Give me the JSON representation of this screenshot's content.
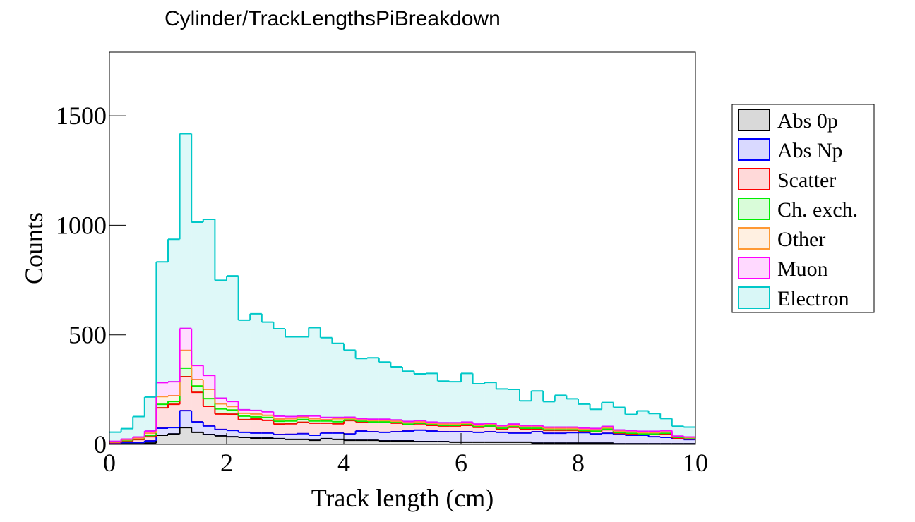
{
  "chart_data": {
    "type": "stacked-histogram",
    "title": "Cylinder/TrackLengthsPiBreakdown",
    "x_label": "Track length (cm)",
    "y_label": "Counts",
    "bins": [
      0,
      0.2,
      0.4,
      0.6,
      0.8,
      1,
      1.2,
      1.4,
      1.6,
      1.8,
      2,
      2.2,
      2.4,
      2.6,
      2.8,
      3,
      3.2,
      3.4,
      3.6,
      3.8,
      4,
      4.2,
      4.4,
      4.6,
      4.8,
      5,
      5.2,
      5.4,
      5.6,
      5.8,
      6,
      6.2,
      6.4,
      6.6,
      6.8,
      7,
      7.2,
      7.4,
      7.6,
      7.8,
      8,
      8.2,
      8.4,
      8.6,
      8.8,
      9,
      9.2,
      9.4,
      9.6,
      9.8,
      10
    ],
    "xlim": [
      0,
      10
    ],
    "xticks": [
      0,
      2,
      4,
      6,
      8,
      10
    ],
    "ylim": [
      0,
      1790
    ],
    "yticks": [
      0,
      500,
      1000,
      1500
    ],
    "legend_position": "outside-right",
    "series": [
      {
        "name": "Abs 0p",
        "color": "#000000",
        "values": [
          2,
          3,
          3,
          6,
          42,
          48,
          77,
          55,
          45,
          39,
          35,
          32,
          29,
          29,
          26,
          23,
          23,
          19,
          26,
          23,
          19,
          19,
          19,
          16,
          16,
          16,
          13,
          13,
          13,
          10,
          10,
          10,
          10,
          10,
          10,
          10,
          6,
          6,
          6,
          6,
          6,
          6,
          6,
          3,
          3,
          3,
          3,
          3,
          3,
          3
        ]
      },
      {
        "name": "Abs Np",
        "color": "#0000ff",
        "values": [
          3,
          6,
          6,
          10,
          32,
          29,
          77,
          48,
          39,
          29,
          29,
          23,
          23,
          23,
          19,
          23,
          26,
          23,
          26,
          29,
          29,
          42,
          39,
          39,
          42,
          45,
          52,
          48,
          45,
          48,
          48,
          45,
          48,
          45,
          42,
          42,
          52,
          45,
          45,
          48,
          48,
          42,
          45,
          42,
          39,
          39,
          32,
          29,
          23,
          19
        ]
      },
      {
        "name": "Scatter",
        "color": "#ff0000",
        "values": [
          3,
          6,
          13,
          19,
          93,
          106,
          155,
          135,
          90,
          71,
          74,
          58,
          64,
          58,
          48,
          48,
          52,
          55,
          45,
          42,
          61,
          42,
          42,
          45,
          39,
          29,
          29,
          26,
          26,
          26,
          29,
          23,
          23,
          16,
          26,
          19,
          13,
          13,
          13,
          10,
          6,
          10,
          16,
          6,
          6,
          3,
          10,
          16,
          3,
          3
        ]
      },
      {
        "name": "Ch. exch.",
        "color": "#00ee00",
        "values": [
          3,
          3,
          3,
          6,
          16,
          13,
          39,
          29,
          35,
          23,
          19,
          16,
          10,
          13,
          13,
          13,
          13,
          10,
          10,
          10,
          3,
          3,
          3,
          3,
          3,
          3,
          3,
          3,
          3,
          3,
          3,
          3,
          3,
          3,
          3,
          3,
          3,
          3,
          3,
          3,
          3,
          3,
          3,
          3,
          3,
          3,
          3,
          3,
          3,
          3
        ]
      },
      {
        "name": "Other",
        "color": "#ff9933",
        "values": [
          0,
          3,
          3,
          10,
          35,
          26,
          81,
          29,
          42,
          23,
          16,
          13,
          13,
          10,
          10,
          10,
          10,
          10,
          6,
          13,
          6,
          6,
          6,
          6,
          6,
          6,
          6,
          6,
          6,
          6,
          6,
          6,
          6,
          6,
          6,
          6,
          6,
          6,
          6,
          6,
          6,
          6,
          6,
          6,
          6,
          6,
          6,
          6,
          3,
          3
        ]
      },
      {
        "name": "Muon",
        "color": "#ff00ff",
        "values": [
          3,
          3,
          6,
          10,
          64,
          64,
          100,
          64,
          64,
          26,
          23,
          16,
          16,
          16,
          13,
          10,
          6,
          13,
          10,
          6,
          6,
          6,
          6,
          6,
          6,
          6,
          6,
          6,
          6,
          6,
          6,
          6,
          6,
          6,
          6,
          6,
          6,
          6,
          6,
          6,
          6,
          6,
          6,
          6,
          6,
          6,
          6,
          6,
          3,
          3
        ]
      },
      {
        "name": "Electron",
        "color": "#00c8c8",
        "values": [
          42,
          48,
          93,
          155,
          551,
          650,
          889,
          654,
          712,
          538,
          573,
          409,
          441,
          409,
          399,
          364,
          361,
          403,
          364,
          338,
          306,
          274,
          280,
          261,
          242,
          229,
          213,
          222,
          190,
          187,
          222,
          184,
          187,
          167,
          158,
          113,
          158,
          116,
          145,
          129,
          109,
          87,
          109,
          103,
          74,
          93,
          81,
          55,
          45,
          45
        ]
      }
    ]
  }
}
